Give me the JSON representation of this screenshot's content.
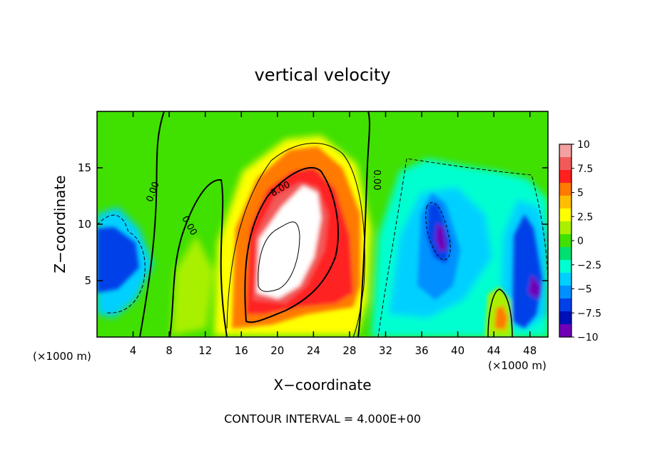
{
  "chart_data": {
    "type": "heatmap",
    "title": "vertical velocity",
    "xlabel": "X−coordinate",
    "ylabel": "Z−coordinate",
    "x_unit_left": "(×1000 m)",
    "x_unit_right": "(×1000 m)",
    "xlim": [
      0,
      50
    ],
    "ylim": [
      0,
      20
    ],
    "x_ticks": [
      4,
      8,
      12,
      16,
      20,
      24,
      28,
      32,
      36,
      40,
      44,
      48
    ],
    "y_ticks": [
      5,
      10,
      15
    ],
    "colorbar": {
      "ticks": [
        "10",
        "7.5",
        "5",
        "2.5",
        "0",
        "−2.5",
        "−5",
        "−7.5",
        "−10"
      ],
      "range": [
        -10,
        10
      ],
      "colors": [
        "#f4a0a0",
        "#f25a5a",
        "#ff2020",
        "#ff7a00",
        "#ffbf00",
        "#ffff00",
        "#a8f000",
        "#40e000",
        "#00e070",
        "#00ffd0",
        "#00d0ff",
        "#0090ff",
        "#0040e8",
        "#0010b8",
        "#7000b8"
      ]
    },
    "contour_labels": [
      "0.00",
      "0.00",
      "8.00",
      "0.00"
    ],
    "footer": "CONTOUR INTERVAL = 4.000E+00",
    "features": [
      {
        "x": 21.5,
        "z": 9.0,
        "w": 12,
        "kind": "updraft core"
      },
      {
        "x": 37.5,
        "z": 8.5,
        "w": -10,
        "kind": "downdraft"
      },
      {
        "x": 1.5,
        "z": 6.5,
        "w": -7,
        "kind": "downdraft"
      },
      {
        "x": 47.5,
        "z": 6.0,
        "w": -8,
        "kind": "downdraft"
      },
      {
        "x": 44.7,
        "z": 1.8,
        "w": 6,
        "kind": "updraft"
      }
    ]
  }
}
